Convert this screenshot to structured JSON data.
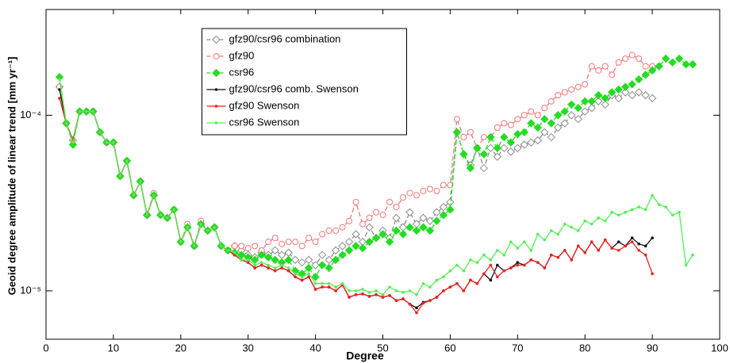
{
  "chart_data": {
    "type": "line",
    "xlabel": "Degree",
    "ylabel": "Geoid degree amplitude of linear trend [mm yr⁻¹]",
    "xlim": [
      0,
      100
    ],
    "xticks": [
      0,
      10,
      20,
      30,
      40,
      50,
      60,
      70,
      80,
      90,
      100
    ],
    "ylim": [
      5.3e-06,
      0.0004
    ],
    "yscale": "log",
    "yticks": [
      {
        "value": 1e-05,
        "label": "10⁻⁵"
      },
      {
        "value": 0.0001,
        "label": "10⁻⁴"
      }
    ],
    "legend": "top-center",
    "x": [
      2,
      3,
      4,
      5,
      6,
      7,
      8,
      9,
      10,
      11,
      12,
      13,
      14,
      15,
      16,
      17,
      18,
      19,
      20,
      21,
      22,
      23,
      24,
      25,
      26,
      27,
      28,
      29,
      30,
      31,
      32,
      33,
      34,
      35,
      36,
      37,
      38,
      39,
      40,
      41,
      42,
      43,
      44,
      45,
      46,
      47,
      48,
      49,
      50,
      51,
      52,
      53,
      54,
      55,
      56,
      57,
      58,
      59,
      60,
      61,
      62,
      63,
      64,
      65,
      66,
      67,
      68,
      69,
      70,
      71,
      72,
      73,
      74,
      75,
      76,
      77,
      78,
      79,
      80,
      81,
      82,
      83,
      84,
      85,
      86,
      87,
      88,
      89,
      90,
      91,
      92,
      93,
      94,
      95,
      96
    ],
    "series": [
      {
        "name": "gfz90/csr96 combination",
        "color": "#8c8c8c",
        "dashed": true,
        "marker": "diamond-open",
        "values": [
          0.000145,
          9e-05,
          7.2e-05,
          0.000105,
          0.000105,
          0.000105,
          8e-05,
          7e-05,
          7e-05,
          4.5e-05,
          5.5e-05,
          3.5e-05,
          4.2e-05,
          2.7e-05,
          3.5e-05,
          2.7e-05,
          2.6e-05,
          2.9e-05,
          1.9e-05,
          2.3e-05,
          1.8e-05,
          2.4e-05,
          2.2e-05,
          2.3e-05,
          1.8e-05,
          1.7e-05,
          1.8e-05,
          1.7e-05,
          1.6e-05,
          1.55e-05,
          1.65e-05,
          1.6e-05,
          1.7e-05,
          1.6e-05,
          1.65e-05,
          1.5e-05,
          1.45e-05,
          1.5e-05,
          1.4e-05,
          1.6e-05,
          1.5e-05,
          1.7e-05,
          1.8e-05,
          1.9e-05,
          2.1e-05,
          1.9e-05,
          2.3e-05,
          2e-05,
          2.2e-05,
          2e-05,
          2.6e-05,
          2.3e-05,
          2.8e-05,
          2.4e-05,
          2.6e-05,
          2.5e-05,
          2.8e-05,
          3e-05,
          3.2e-05,
          8e-05,
          6e-05,
          5.2e-05,
          6.5e-05,
          5e-05,
          6.5e-05,
          5.8e-05,
          6.5e-05,
          6.2e-05,
          6.5e-05,
          6.8e-05,
          7e-05,
          7.2e-05,
          8e-05,
          7.5e-05,
          8.5e-05,
          9e-05,
          0.0001,
          9.5e-05,
          0.000105,
          0.00011,
          0.00012,
          0.000115,
          0.00013,
          0.000125,
          0.000135,
          0.00013,
          0.000135,
          0.00013,
          0.000125,
          null,
          null,
          null,
          null,
          null,
          null
        ]
      },
      {
        "name": "gfz90",
        "color": "#f07878",
        "dashed": true,
        "marker": "circle-open",
        "values": [
          0.000145,
          9e-05,
          7.2e-05,
          0.000105,
          0.000105,
          0.000105,
          8e-05,
          7e-05,
          7e-05,
          4.5e-05,
          5.5e-05,
          3.5e-05,
          4.2e-05,
          2.7e-05,
          3.6e-05,
          2.7e-05,
          2.6e-05,
          2.9e-05,
          1.9e-05,
          2.4e-05,
          1.8e-05,
          2.5e-05,
          2.2e-05,
          2.3e-05,
          1.8e-05,
          1.7e-05,
          1.8e-05,
          1.8e-05,
          1.75e-05,
          1.8e-05,
          1.7e-05,
          1.9e-05,
          2e-05,
          1.85e-05,
          1.9e-05,
          1.9e-05,
          1.8e-05,
          2e-05,
          1.9e-05,
          2.1e-05,
          2.2e-05,
          2.2e-05,
          2.3e-05,
          2.5e-05,
          3.2e-05,
          2.4e-05,
          2.6e-05,
          2.8e-05,
          2.7e-05,
          3.2e-05,
          3e-05,
          3.4e-05,
          3.6e-05,
          3.5e-05,
          3.7e-05,
          3.8e-05,
          3.7e-05,
          4e-05,
          4e-05,
          9.5e-05,
          7.5e-05,
          8e-05,
          6.5e-05,
          7.5e-05,
          7.5e-05,
          8.5e-05,
          9e-05,
          8.8e-05,
          9.5e-05,
          0.0001,
          0.000105,
          0.0001,
          0.00011,
          0.00012,
          0.00013,
          0.000135,
          0.00014,
          0.000145,
          0.00015,
          0.00019,
          0.00018,
          0.00019,
          0.00017,
          0.0002,
          0.00021,
          0.00022,
          0.00021,
          0.00019,
          0.00019,
          null,
          null,
          null,
          null,
          null,
          null
        ]
      },
      {
        "name": "csr96",
        "color": "#22dd22",
        "dashed": true,
        "marker": "diamond",
        "values": [
          0.000165,
          9e-05,
          6.8e-05,
          0.000105,
          0.000105,
          0.000105,
          8e-05,
          7e-05,
          7e-05,
          4.5e-05,
          5.5e-05,
          3.5e-05,
          4.2e-05,
          2.7e-05,
          3.5e-05,
          2.7e-05,
          2.6e-05,
          2.9e-05,
          1.9e-05,
          2.3e-05,
          1.8e-05,
          2.4e-05,
          2.2e-05,
          2.3e-05,
          1.8e-05,
          1.7e-05,
          1.65e-05,
          1.6e-05,
          1.55e-05,
          1.5e-05,
          1.6e-05,
          1.55e-05,
          1.5e-05,
          1.45e-05,
          1.5e-05,
          1.3e-05,
          1.25e-05,
          1.35e-05,
          1.2e-05,
          1.4e-05,
          1.35e-05,
          1.5e-05,
          1.6e-05,
          1.7e-05,
          1.8e-05,
          1.75e-05,
          1.9e-05,
          2e-05,
          2.1e-05,
          1.9e-05,
          2.2e-05,
          2.1e-05,
          2.3e-05,
          2.2e-05,
          2.3e-05,
          2.2e-05,
          2.5e-05,
          2.7e-05,
          2.9e-05,
          8e-05,
          6e-05,
          5e-05,
          6.5e-05,
          6e-05,
          7.5e-05,
          6.5e-05,
          7.5e-05,
          7e-05,
          7.8e-05,
          8e-05,
          9e-05,
          8.5e-05,
          9.5e-05,
          9e-05,
          0.0001,
          0.000105,
          0.000115,
          0.00011,
          0.00012,
          0.00012,
          0.00013,
          0.000125,
          0.000135,
          0.00014,
          0.000145,
          0.00015,
          0.00016,
          0.00017,
          0.00018,
          0.00019,
          0.00021,
          0.0002,
          0.00021,
          0.000195,
          0.000195
        ]
      },
      {
        "name": "gfz90/csr96 comb. Swenson",
        "color": "#111111",
        "dashed": false,
        "marker": "dot",
        "values": [
          0.00014,
          9e-05,
          7.2e-05,
          0.000105,
          0.000105,
          0.000105,
          8e-05,
          7e-05,
          7e-05,
          4.5e-05,
          5.5e-05,
          3.5e-05,
          4.2e-05,
          2.7e-05,
          3.5e-05,
          2.7e-05,
          2.6e-05,
          2.9e-05,
          1.9e-05,
          2.3e-05,
          1.8e-05,
          2.4e-05,
          2.2e-05,
          2.3e-05,
          1.8e-05,
          1.7e-05,
          1.6e-05,
          1.5e-05,
          1.45e-05,
          1.35e-05,
          1.4e-05,
          1.35e-05,
          1.3e-05,
          1.35e-05,
          1.3e-05,
          1.2e-05,
          1.15e-05,
          1.2e-05,
          1.02e-05,
          1.05e-05,
          1.05e-05,
          1e-05,
          1.08e-05,
          9.2e-06,
          9.5e-06,
          9.6e-06,
          9.3e-06,
          9.5e-06,
          9.2e-06,
          9.4e-06,
          8.8e-06,
          9e-06,
          8.4e-06,
          8e-06,
          8.6e-06,
          8.8e-06,
          9.2e-06,
          1e-05,
          1.05e-05,
          1.1e-05,
          1e-05,
          1.15e-05,
          1.1e-05,
          1.25e-05,
          1.15e-05,
          1.4e-05,
          1.3e-05,
          1.35e-05,
          1.45e-05,
          1.4e-05,
          1.5e-05,
          1.45e-05,
          1.35e-05,
          1.6e-05,
          1.55e-05,
          1.7e-05,
          1.5e-05,
          1.8e-05,
          1.65e-05,
          1.9e-05,
          1.7e-05,
          1.95e-05,
          1.75e-05,
          1.9e-05,
          1.8e-05,
          2e-05,
          1.85e-05,
          1.8e-05,
          2e-05,
          null,
          null,
          null,
          null,
          null,
          null
        ]
      },
      {
        "name": "gfz90 Swenson",
        "color": "#ee2222",
        "dashed": false,
        "marker": "dot",
        "values": [
          0.000125,
          9e-05,
          7.2e-05,
          0.000105,
          0.000105,
          0.000105,
          8e-05,
          7e-05,
          7e-05,
          4.5e-05,
          5.5e-05,
          3.5e-05,
          4.2e-05,
          2.7e-05,
          3.5e-05,
          2.7e-05,
          2.6e-05,
          2.9e-05,
          1.9e-05,
          2.3e-05,
          1.8e-05,
          2.4e-05,
          2.2e-05,
          2.3e-05,
          1.8e-05,
          1.7e-05,
          1.6e-05,
          1.5e-05,
          1.45e-05,
          1.35e-05,
          1.4e-05,
          1.35e-05,
          1.3e-05,
          1.35e-05,
          1.3e-05,
          1.2e-05,
          1.15e-05,
          1.2e-05,
          1.02e-05,
          1.05e-05,
          1.05e-05,
          1e-05,
          1.08e-05,
          9.2e-06,
          9.5e-06,
          9.6e-06,
          9.3e-06,
          9.5e-06,
          9.2e-06,
          9.4e-06,
          8.8e-06,
          9e-06,
          8.4e-06,
          7.5e-06,
          8.5e-06,
          8.8e-06,
          9.2e-06,
          1e-05,
          1.05e-05,
          1.1e-05,
          1e-05,
          1.15e-05,
          1.1e-05,
          1.25e-05,
          1.4e-05,
          1.2e-05,
          1.3e-05,
          1.35e-05,
          1.4e-05,
          1.4e-05,
          1.5e-05,
          1.45e-05,
          1.35e-05,
          1.6e-05,
          1.55e-05,
          1.7e-05,
          1.5e-05,
          1.8e-05,
          1.65e-05,
          1.9e-05,
          1.7e-05,
          1.95e-05,
          1.75e-05,
          1.7e-05,
          1.8e-05,
          1.9e-05,
          1.7e-05,
          1.6e-05,
          1.25e-05,
          null,
          null,
          null,
          null,
          null,
          null
        ]
      },
      {
        "name": "csr96 Swenson",
        "color": "#55ee55",
        "dashed": false,
        "marker": "dot",
        "values": [
          0.00016,
          9e-05,
          7e-05,
          0.000105,
          0.000105,
          0.000105,
          8e-05,
          7e-05,
          7e-05,
          4.5e-05,
          5.5e-05,
          3.5e-05,
          4.2e-05,
          2.7e-05,
          3.5e-05,
          2.7e-05,
          2.6e-05,
          2.9e-05,
          1.9e-05,
          2.3e-05,
          1.8e-05,
          2.4e-05,
          2.2e-05,
          2.3e-05,
          1.8e-05,
          1.7e-05,
          1.65e-05,
          1.5e-05,
          1.5e-05,
          1.4e-05,
          1.45e-05,
          1.4e-05,
          1.35e-05,
          1.4e-05,
          1.35e-05,
          1.25e-05,
          1.2e-05,
          1.25e-05,
          1.1e-05,
          1.1e-05,
          1.1e-05,
          1.05e-05,
          1.1e-05,
          1e-05,
          1e-05,
          1.02e-05,
          9.8e-06,
          1e-05,
          9.5e-06,
          1.05e-05,
          1e-05,
          9.8e-06,
          1e-05,
          9.5e-06,
          1.1e-05,
          1.05e-05,
          1.15e-05,
          1.2e-05,
          1.3e-05,
          1.4e-05,
          1.3e-05,
          1.5e-05,
          1.45e-05,
          1.6e-05,
          1.5e-05,
          1.7e-05,
          1.6e-05,
          1.9e-05,
          1.75e-05,
          1.9e-05,
          1.7e-05,
          2.1e-05,
          1.95e-05,
          2.2e-05,
          2.1e-05,
          2.4e-05,
          2.3e-05,
          2.2e-05,
          2.5e-05,
          2.4e-05,
          2.6e-05,
          2.5e-05,
          2.8e-05,
          2.7e-05,
          2.8e-05,
          2.9e-05,
          3e-05,
          2.9e-05,
          3.5e-05,
          3.1e-05,
          3e-05,
          2.7e-05,
          2.8e-05,
          1.4e-05,
          1.6e-05
        ]
      }
    ]
  }
}
